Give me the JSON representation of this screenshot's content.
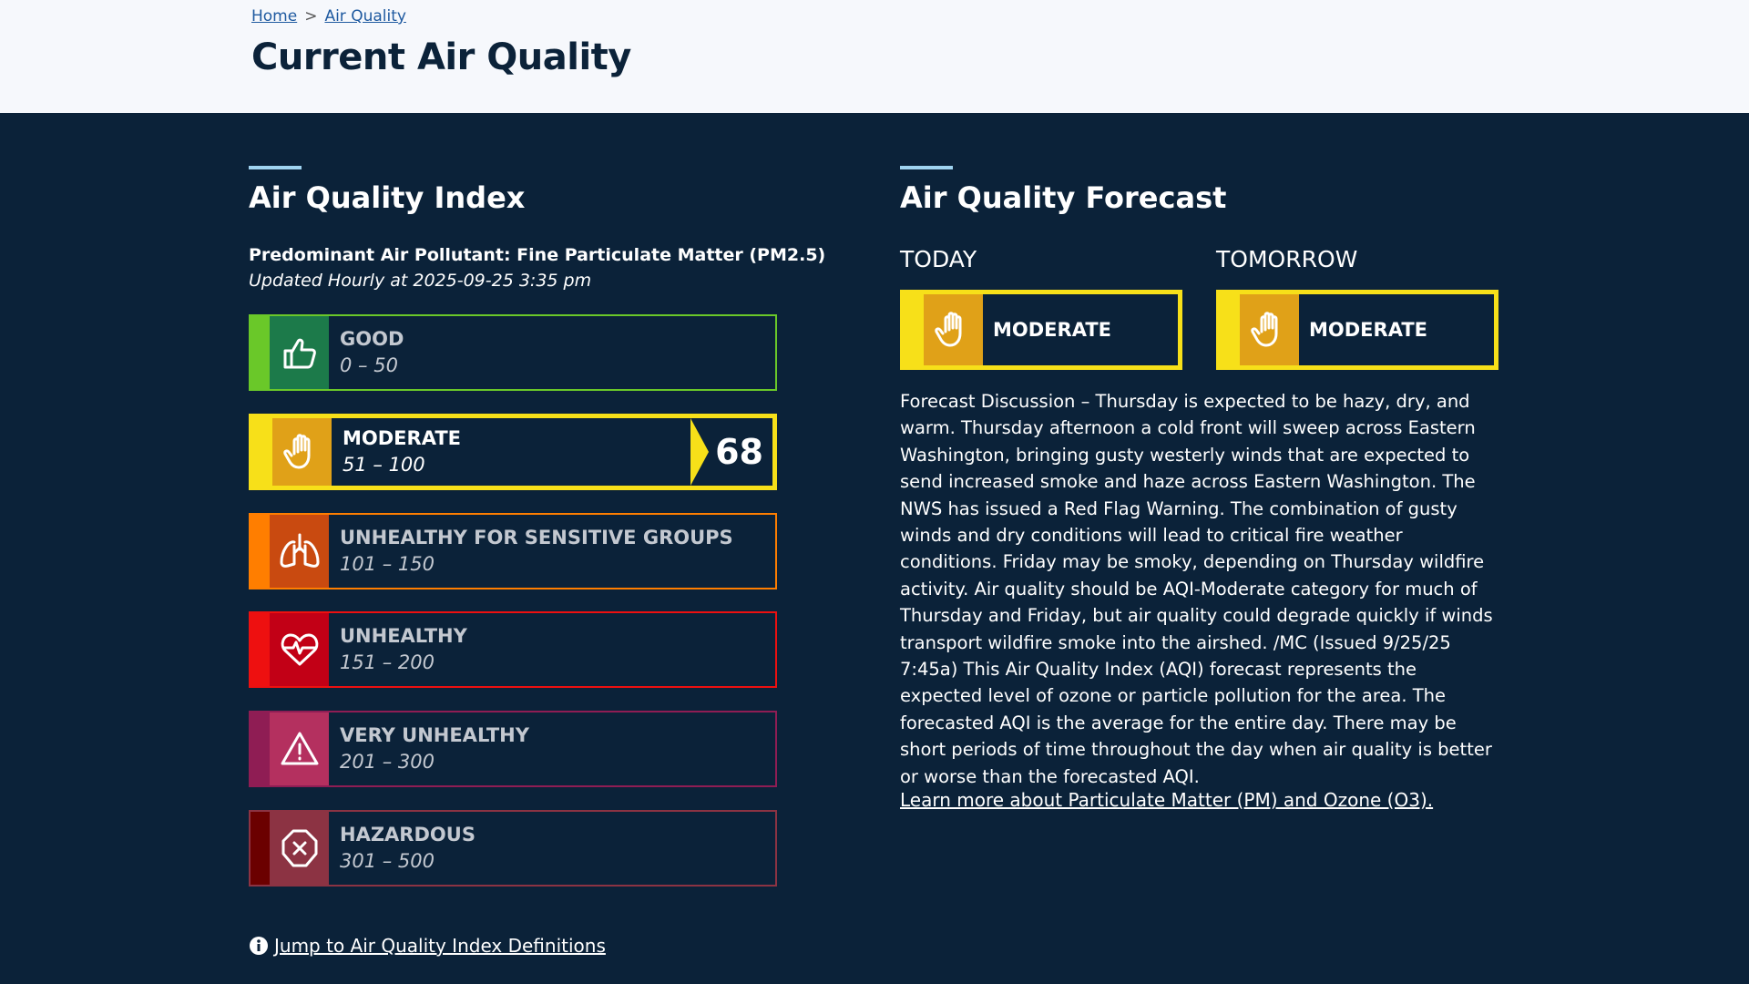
{
  "breadcrumb": [
    "Home",
    "Air Quality"
  ],
  "title": "Current Air Quality",
  "index": {
    "heading": "Air Quality Index",
    "pollutant": "Predominant Air Pollutant: Fine Particulate Matter (PM2.5)",
    "updated": "Updated Hourly at 2025-09-25 3:35 pm",
    "categories": [
      {
        "name": "GOOD",
        "range": "0 – 50"
      },
      {
        "name": "MODERATE",
        "range": "51 – 100",
        "aqi": 68
      },
      {
        "name": "UNHEALTHY FOR SENSITIVE GROUPS",
        "range": "101 – 150"
      },
      {
        "name": "UNHEALTHY",
        "range": "151 – 200"
      },
      {
        "name": "VERY UNHEALTHY",
        "range": "201 – 300"
      },
      {
        "name": "HAZARDOUS",
        "range": "301 – 500"
      }
    ],
    "jump_link": "Jump to Air Quality Index Definitions"
  },
  "forecast": {
    "heading": "Air Quality Forecast",
    "days": [
      {
        "day": "TODAY",
        "level": "MODERATE"
      },
      {
        "day": "TOMORROW",
        "level": "MODERATE"
      }
    ],
    "discussion": "Forecast Discussion – Thursday is expected to be hazy, dry, and warm. Thursday afternoon a cold front will sweep across Eastern Washington, bringing gusty westerly winds that are expected to send increased smoke and haze across Eastern Washington. The NWS has issued a Red Flag Warning. The combination of gusty winds and dry conditions will lead to critical fire weather conditions. Friday may be smoky, depending on Thursday wildfire activity. Air quality should be AQI-Moderate category for much of Thursday and Friday, but air quality could degrade quickly if winds transport wildfire smoke into the airshed. /MC (Issued 9/25/25 7:45a) This Air Quality Index (AQI) forecast represents the expected level of ozone or particle pollution for the area. The forecasted AQI is the average for the entire day. There may be short periods of time throughout the day when air quality is better or worse than the forecasted AQI.",
    "learn_more": "Learn more about Particulate Matter (PM) and Ozone (O3)."
  }
}
